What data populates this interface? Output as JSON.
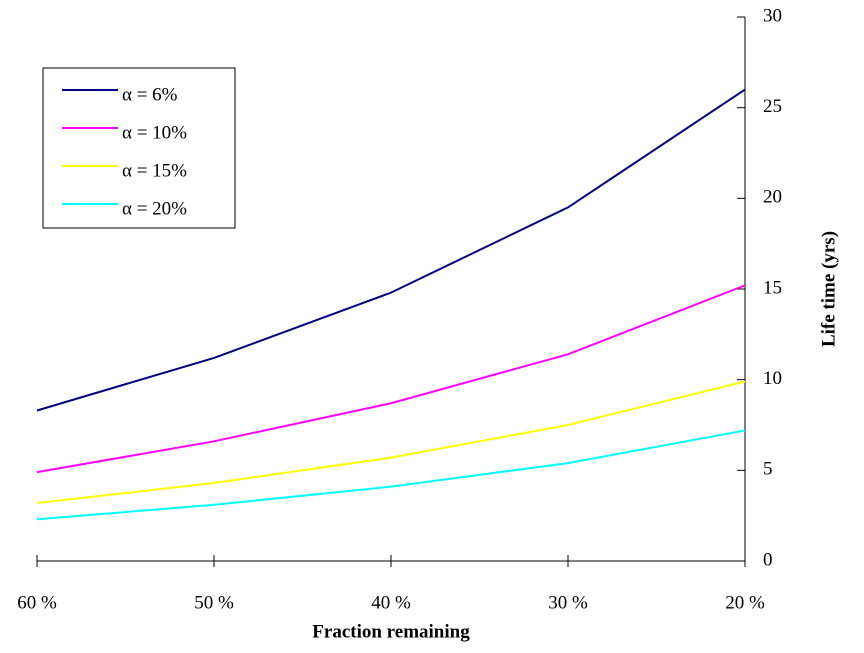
{
  "chart_data": {
    "type": "line",
    "xlabel": "Fraction remaining",
    "ylabel": "Life time (yrs)",
    "categories": [
      "60 %",
      "50 %",
      "40 %",
      "30 %",
      "20 %"
    ],
    "series": [
      {
        "name": "α = 6%",
        "color": "#000080",
        "values": [
          8.3,
          11.2,
          14.8,
          19.5,
          26.0
        ]
      },
      {
        "name": "α = 10%",
        "color": "#ff00ff",
        "values": [
          4.9,
          6.6,
          8.7,
          11.4,
          15.2
        ]
      },
      {
        "name": "α = 15%",
        "color": "#ffff00",
        "values": [
          3.2,
          4.3,
          5.7,
          7.5,
          9.9
        ]
      },
      {
        "name": "α = 20%",
        "color": "#00ffff",
        "values": [
          2.3,
          3.1,
          4.1,
          5.4,
          7.2
        ]
      }
    ],
    "ylim": [
      0,
      30
    ],
    "yticks": [
      0,
      5,
      10,
      15,
      20,
      25,
      30
    ],
    "legend": "upper left"
  }
}
